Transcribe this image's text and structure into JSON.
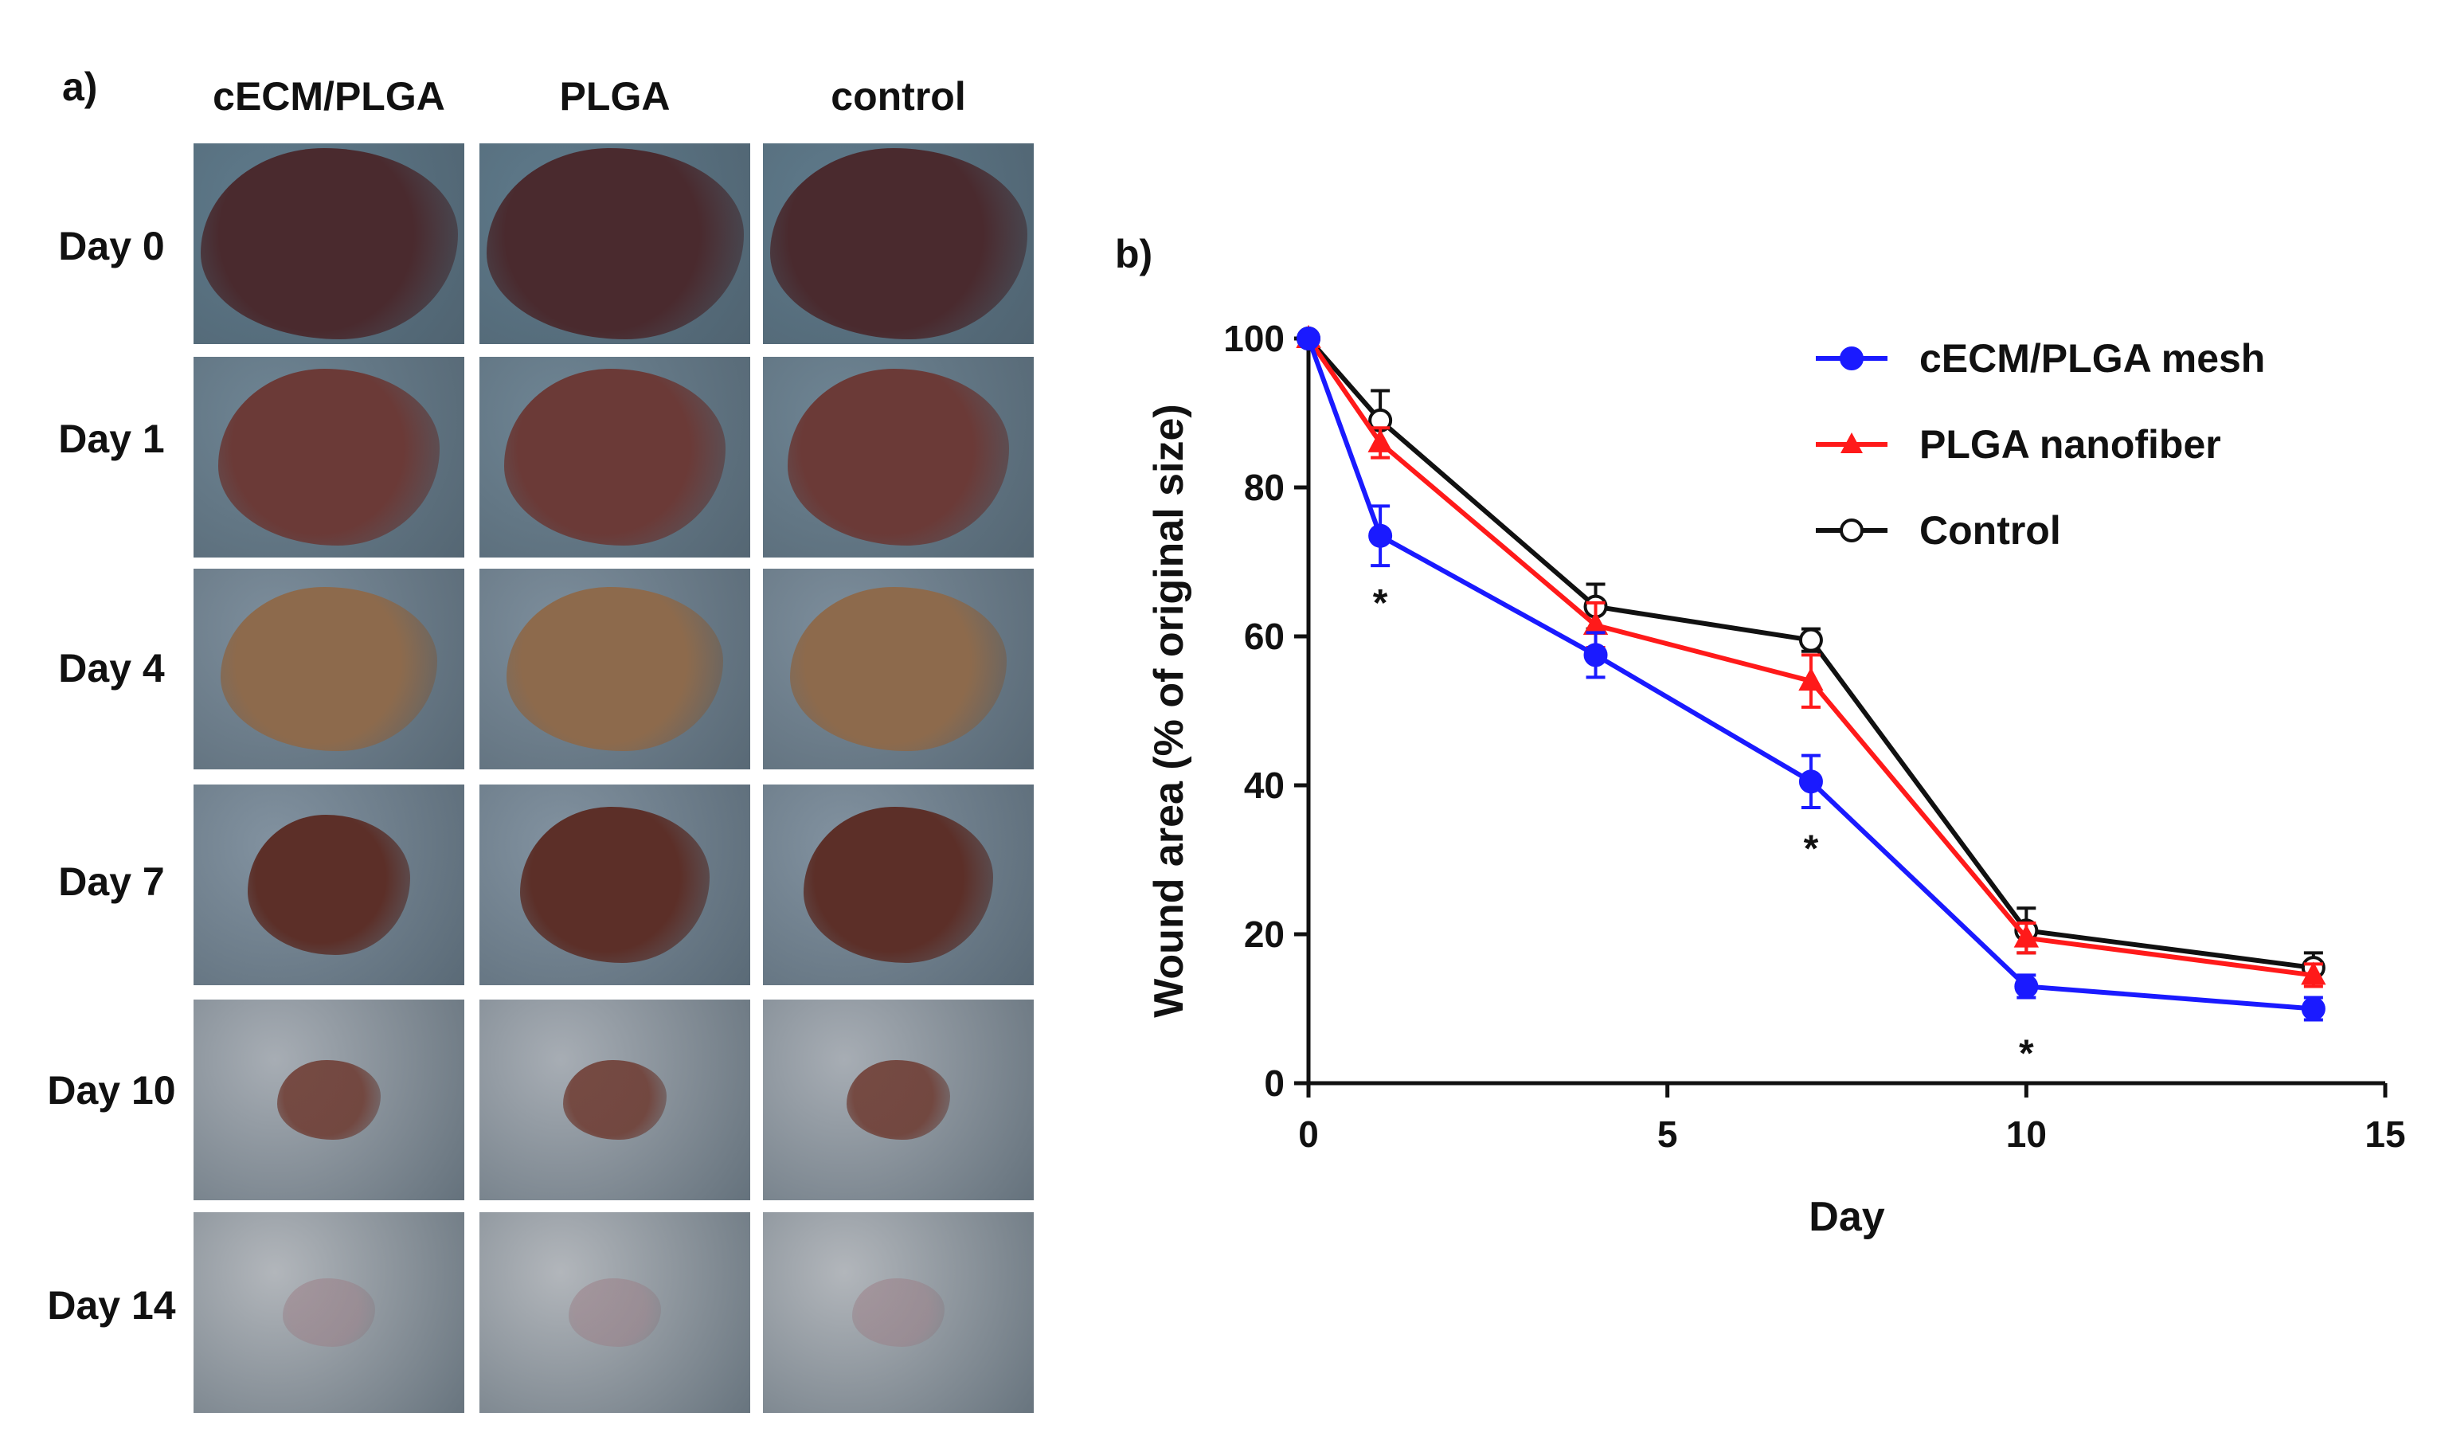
{
  "figure": {
    "panel_a_label": "a)",
    "panel_b_label": "b)",
    "columns": [
      "cECM/PLGA",
      "PLGA",
      "control"
    ],
    "rows": [
      "Day 0",
      "Day 1",
      "Day 4",
      "Day 7",
      "Day 10",
      "Day 14"
    ],
    "photo_colors": {
      "background": [
        "#5f7b8c",
        "#6f8594",
        "#7d8e9c",
        "#8292a0",
        "#a7adb4",
        "#b2b6bb"
      ],
      "wound": [
        "#4a2a2e",
        "#6b3a37",
        "#8d6a4c",
        "#5c2f28",
        "#6e3a30",
        "#9c8088"
      ]
    }
  },
  "chart_data": {
    "type": "line",
    "title": "",
    "xlabel": "Day",
    "ylabel": "Wound area (% of original size)",
    "xlim": [
      0,
      15
    ],
    "ylim": [
      0,
      100
    ],
    "xticks": [
      0,
      5,
      10,
      15
    ],
    "yticks": [
      0,
      20,
      40,
      60,
      80,
      100
    ],
    "legend_position": "top-right",
    "x": [
      0,
      1,
      4,
      7,
      10,
      14
    ],
    "series": [
      {
        "name": "cECM/PLGA  mesh",
        "color": "#1a1aff",
        "marker": "circle",
        "filled": true,
        "values": [
          100,
          73.5,
          57.5,
          40.5,
          13,
          10
        ],
        "errors": [
          0,
          4,
          3,
          3.5,
          1.5,
          1.5
        ]
      },
      {
        "name": "PLGA nanofiber",
        "color": "#ff1a1a",
        "marker": "triangle",
        "filled": true,
        "values": [
          100,
          86,
          61.5,
          54,
          19.5,
          14.5
        ],
        "errors": [
          0,
          2,
          3,
          3.5,
          2,
          1.5
        ]
      },
      {
        "name": "Control",
        "color": "#111111",
        "marker": "circle",
        "filled": false,
        "values": [
          100,
          89,
          64,
          59.5,
          20.5,
          15.5
        ],
        "errors": [
          0,
          4,
          3,
          1.5,
          3,
          2
        ]
      }
    ],
    "annotations": [
      {
        "x": 1,
        "y": 73.5,
        "text": "*"
      },
      {
        "x": 7,
        "y": 40.5,
        "text": "*"
      },
      {
        "x": 10,
        "y": 13,
        "text": "*"
      }
    ]
  }
}
